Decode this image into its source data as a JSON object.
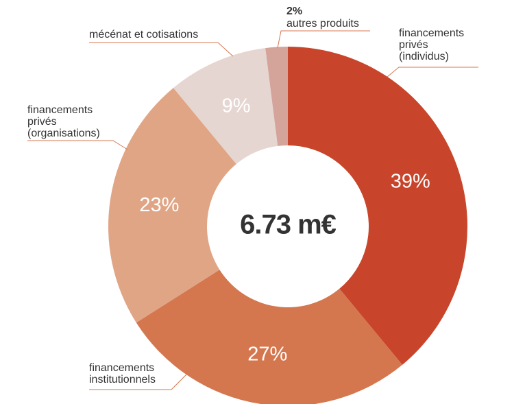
{
  "chart_data": {
    "type": "donut",
    "center_label": "6.73 m€",
    "categories": [
      "financements privés (individus)",
      "financements institutionnels",
      "financements privés (organisations)",
      "mécénat et cotisations",
      "autres produits"
    ],
    "values": [
      39,
      27,
      23,
      9,
      2
    ],
    "value_labels": [
      "39%",
      "27%",
      "23%",
      "9%",
      "2%"
    ],
    "colors": [
      "#c8452b",
      "#d4774f",
      "#e0a585",
      "#e6d6d1",
      "#d4a49a"
    ]
  }
}
